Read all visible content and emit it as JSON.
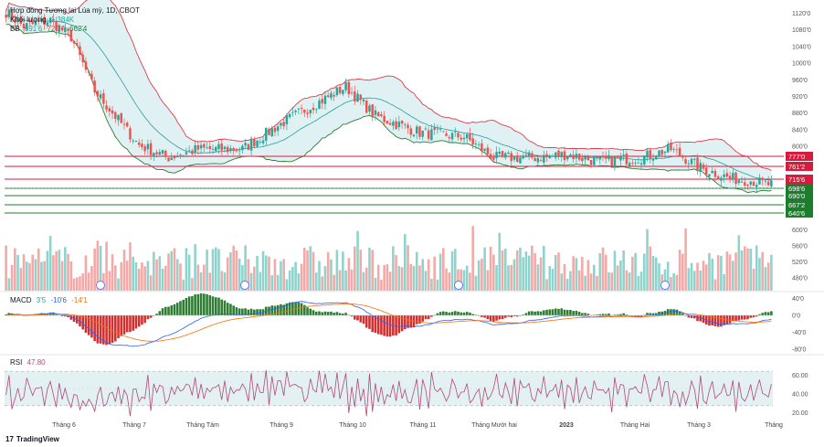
{
  "header": {
    "title": "Hợp đồng Tương lai Lúa mỳ, 1D, CBOT",
    "volume_label": "Khối lượng",
    "volume_value": "1.384K",
    "bb_label": "BB",
    "bb_values": [
      "691'6",
      "720'7",
      "662'4"
    ]
  },
  "macd_legend": {
    "label": "MACD",
    "values": [
      "3'5",
      "-10'6",
      "-14'1"
    ]
  },
  "rsi_legend": {
    "label": "RSI",
    "value": "47.80"
  },
  "footer": {
    "logo_text": "TradingView",
    "logo_mark": "17"
  },
  "colors": {
    "up": "#26a69a",
    "down": "#ef5350",
    "bb_upper": "#e23b4a",
    "bb_lower": "#2e7d32",
    "bb_basis": "#2a9c9c",
    "bb_fill": "#d9eff0",
    "macd_line": "#2962ff",
    "signal_line": "#ff6d00",
    "rsi_line": "#b04a7a",
    "rsi_band": "#e3f1f3",
    "red_level": "#d81b3c",
    "green_level": "#1b7e2c"
  },
  "chart_data": [
    {
      "type": "candlestick",
      "id": "price",
      "title": "Hợp đồng Tương lai Lúa mỳ, 1D, CBOT",
      "x_tick_labels": [
        "Tháng 6",
        "Tháng 7",
        "Tháng Tám",
        "Tháng 9",
        "Tháng 10",
        "Tháng 11",
        "Tháng Mười hai",
        "2023",
        "Tháng Hai",
        "Tháng 3",
        "Tháng"
      ],
      "y_ticks": [
        "1120'0",
        "1080'0",
        "1040'0",
        "1000'0",
        "960'0",
        "920'0",
        "880'0",
        "840'0",
        "800'0"
      ],
      "ylim": [
        630,
        1140
      ],
      "key_points": [
        [
          0,
          1120
        ],
        [
          6,
          1085
        ],
        [
          15,
          1100
        ],
        [
          22,
          1060
        ],
        [
          30,
          930
        ],
        [
          38,
          860
        ],
        [
          45,
          800
        ],
        [
          55,
          770
        ],
        [
          65,
          790
        ],
        [
          80,
          790
        ],
        [
          95,
          860
        ],
        [
          105,
          900
        ],
        [
          115,
          940
        ],
        [
          125,
          870
        ],
        [
          140,
          830
        ],
        [
          155,
          820
        ],
        [
          165,
          770
        ],
        [
          180,
          770
        ],
        [
          190,
          778
        ],
        [
          200,
          760
        ],
        [
          215,
          770
        ],
        [
          225,
          790
        ],
        [
          235,
          745
        ],
        [
          245,
          720
        ],
        [
          252,
          715
        ],
        [
          258,
          705
        ]
      ],
      "bollinger_bands": {
        "period": 20,
        "values": [
          "691'6",
          "720'7",
          "662'4"
        ]
      },
      "price_levels": [
        {
          "label": "777'0",
          "color": "red"
        },
        {
          "label": "761'2",
          "color": "red"
        },
        {
          "label": "715'6",
          "color": "red"
        },
        {
          "label": "698'6",
          "color": "green"
        },
        {
          "label": "690'0",
          "color": "green"
        },
        {
          "label": "667'2",
          "color": "green"
        },
        {
          "label": "640'6",
          "color": "green"
        }
      ]
    },
    {
      "type": "bar",
      "id": "volume",
      "title": "Khối lượng",
      "value": "1.384K",
      "y_ticks": [
        "600'0",
        "560'0",
        "520'0",
        "480'0"
      ]
    },
    {
      "type": "line",
      "id": "macd",
      "title": "MACD",
      "values": [
        "3'5",
        "-10'6",
        "-14'1"
      ],
      "y_ticks": [
        "40'0",
        "0'0",
        "-40'0",
        "-80'0"
      ]
    },
    {
      "type": "line",
      "id": "rsi",
      "title": "RSI",
      "value": 47.8,
      "ylim": [
        15,
        85
      ],
      "bands": [
        30,
        70
      ],
      "y_ticks": [
        "60.00",
        "40.00",
        "20.00"
      ]
    }
  ]
}
